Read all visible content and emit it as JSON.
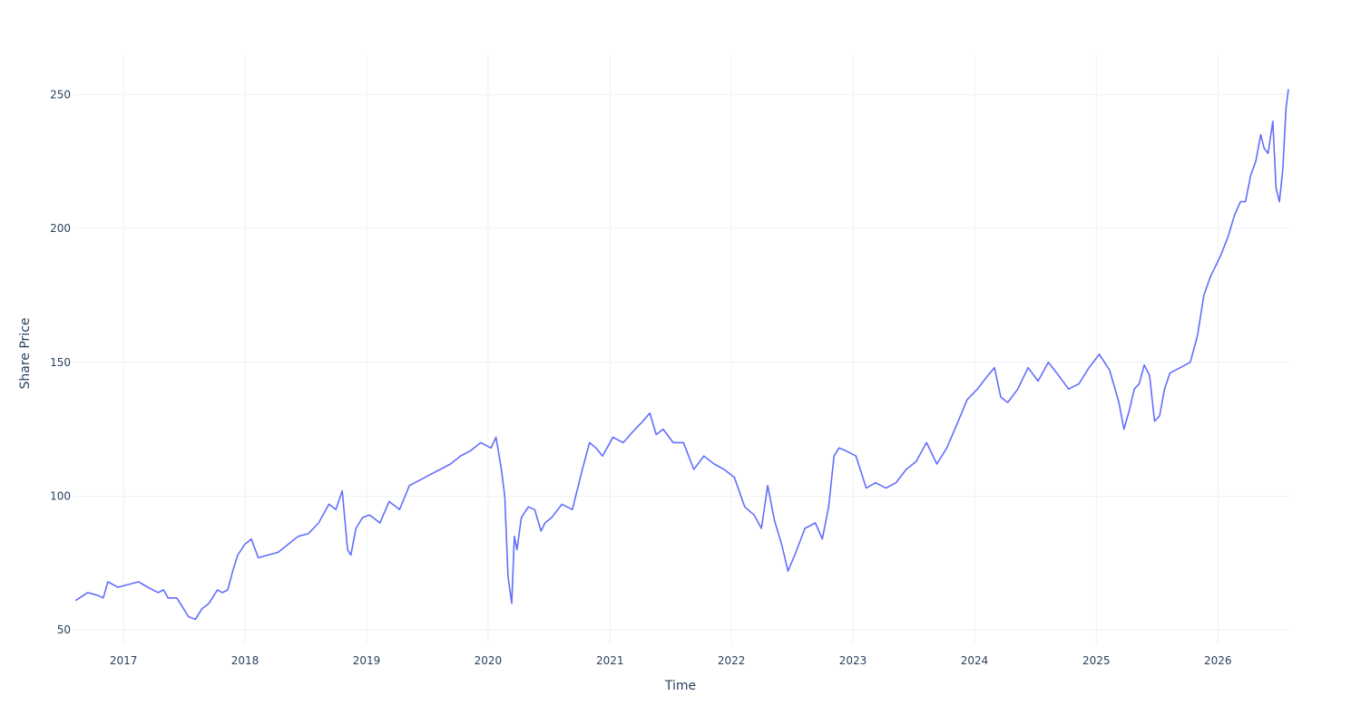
{
  "chart_data": {
    "type": "line",
    "title": "",
    "xlabel": "Time",
    "ylabel": "Share Price",
    "xlim": [
      "2016-08-01",
      "2026-08-01"
    ],
    "ylim": [
      45,
      265
    ],
    "x_ticks": [
      "2017",
      "2018",
      "2019",
      "2020",
      "2021",
      "2022",
      "2023",
      "2024",
      "2025",
      "2026"
    ],
    "y_ticks": [
      50,
      100,
      150,
      200,
      250
    ],
    "grid": true,
    "legend": "none",
    "colors": {
      "line": "#636efa",
      "grid": "#ebf0f8",
      "text": "#2a3f5f",
      "background": "#ffffff"
    },
    "series": [
      {
        "x": [
          "2016-08-10",
          "2016-09-15",
          "2016-10-15",
          "2016-11-01",
          "2016-11-15",
          "2016-12-15",
          "2017-01-15",
          "2017-02-15",
          "2017-03-15",
          "2017-04-15",
          "2017-05-01",
          "2017-05-15",
          "2017-06-10",
          "2017-06-25",
          "2017-07-15",
          "2017-08-05",
          "2017-08-25",
          "2017-09-15",
          "2017-10-10",
          "2017-10-25",
          "2017-11-10",
          "2017-11-25",
          "2017-12-10",
          "2017-12-31",
          "2018-01-20",
          "2018-02-10",
          "2018-03-10",
          "2018-04-10",
          "2018-05-10",
          "2018-06-10",
          "2018-07-10",
          "2018-08-10",
          "2018-09-10",
          "2018-10-01",
          "2018-10-20",
          "2018-11-05",
          "2018-11-15",
          "2018-11-30",
          "2018-12-20",
          "2019-01-10",
          "2019-02-10",
          "2019-03-10",
          "2019-04-10",
          "2019-05-10",
          "2019-06-10",
          "2019-07-10",
          "2019-08-10",
          "2019-09-10",
          "2019-10-10",
          "2019-11-10",
          "2019-12-10",
          "2020-01-10",
          "2020-01-25",
          "2020-02-10",
          "2020-02-20",
          "2020-03-01",
          "2020-03-12",
          "2020-03-20",
          "2020-03-28",
          "2020-04-10",
          "2020-05-01",
          "2020-05-20",
          "2020-06-08",
          "2020-06-20",
          "2020-07-10",
          "2020-08-10",
          "2020-09-10",
          "2020-10-10",
          "2020-11-01",
          "2020-11-20",
          "2020-12-10",
          "2021-01-10",
          "2021-02-10",
          "2021-03-10",
          "2021-04-10",
          "2021-05-01",
          "2021-05-20",
          "2021-06-10",
          "2021-07-10",
          "2021-08-10",
          "2021-09-10",
          "2021-10-10",
          "2021-11-10",
          "2021-12-10",
          "2022-01-10",
          "2022-02-10",
          "2022-03-10",
          "2022-04-01",
          "2022-04-20",
          "2022-05-10",
          "2022-06-01",
          "2022-06-20",
          "2022-07-10",
          "2022-08-10",
          "2022-09-10",
          "2022-10-01",
          "2022-10-20",
          "2022-11-05",
          "2022-11-20",
          "2022-12-10",
          "2023-01-10",
          "2023-02-10",
          "2023-03-10",
          "2023-04-10",
          "2023-05-10",
          "2023-06-10",
          "2023-07-10",
          "2023-08-10",
          "2023-09-10",
          "2023-10-10",
          "2023-11-10",
          "2023-12-10",
          "2024-01-10",
          "2024-02-10",
          "2024-03-01",
          "2024-03-20",
          "2024-04-10",
          "2024-05-10",
          "2024-06-10",
          "2024-07-10",
          "2024-08-10",
          "2024-09-10",
          "2024-10-10",
          "2024-11-10",
          "2024-12-10",
          "2025-01-10",
          "2025-02-10",
          "2025-03-10",
          "2025-03-25",
          "2025-04-10",
          "2025-04-25",
          "2025-05-10",
          "2025-05-25",
          "2025-06-10",
          "2025-06-25",
          "2025-07-10",
          "2025-07-25",
          "2025-08-10",
          "2025-09-10",
          "2025-10-10",
          "2025-11-01",
          "2025-11-20",
          "2025-12-10",
          "2026-01-10",
          "2026-02-01",
          "2026-02-20",
          "2026-03-10",
          "2026-03-25",
          "2026-04-10",
          "2026-04-25",
          "2026-05-10",
          "2026-05-20",
          "2026-06-01",
          "2026-06-15",
          "2026-06-25",
          "2026-07-05",
          "2026-07-15",
          "2026-07-25",
          "2026-08-01"
        ],
        "y": [
          61,
          64,
          63,
          62,
          68,
          66,
          67,
          68,
          66,
          64,
          65,
          62,
          62,
          59,
          55,
          54,
          58,
          60,
          65,
          64,
          65,
          72,
          78,
          82,
          84,
          77,
          78,
          79,
          82,
          85,
          86,
          90,
          97,
          95,
          102,
          80,
          78,
          88,
          92,
          93,
          90,
          98,
          95,
          104,
          106,
          108,
          110,
          112,
          115,
          117,
          120,
          118,
          122,
          110,
          100,
          70,
          60,
          85,
          80,
          92,
          96,
          95,
          87,
          90,
          92,
          97,
          95,
          110,
          120,
          118,
          115,
          122,
          120,
          124,
          128,
          131,
          123,
          125,
          120,
          120,
          110,
          115,
          112,
          110,
          107,
          96,
          93,
          88,
          104,
          91,
          82,
          72,
          78,
          88,
          90,
          84,
          96,
          115,
          118,
          117,
          115,
          103,
          105,
          103,
          105,
          110,
          113,
          120,
          112,
          118,
          127,
          136,
          140,
          145,
          148,
          137,
          135,
          140,
          148,
          143,
          150,
          145,
          140,
          142,
          148,
          153,
          147,
          135,
          125,
          132,
          140,
          142,
          149,
          145,
          128,
          130,
          140,
          146,
          148,
          150,
          160,
          175,
          182,
          190,
          197,
          205,
          210,
          210,
          220,
          225,
          235,
          230,
          228,
          240,
          215,
          210,
          222,
          245,
          252
        ]
      }
    ]
  }
}
